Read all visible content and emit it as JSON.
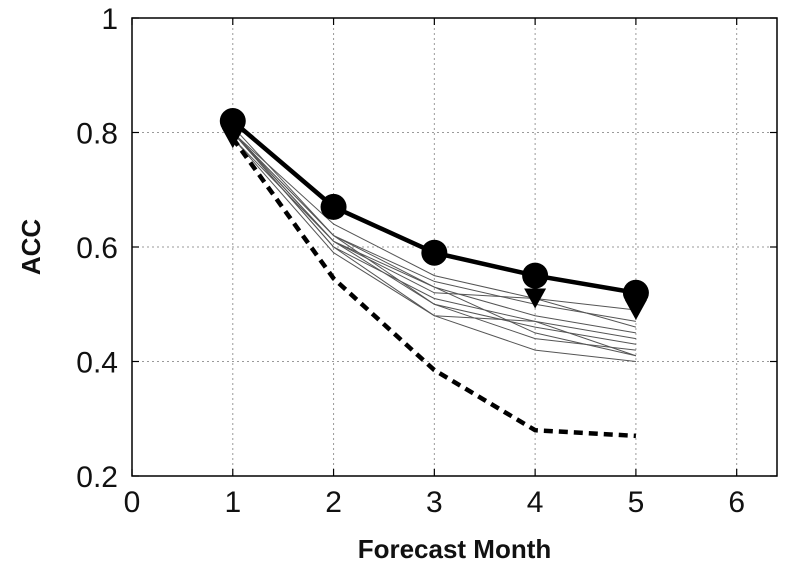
{
  "chart_data": {
    "type": "line",
    "xlabel": "Forecast Month",
    "ylabel": "ACC",
    "xlim": [
      0,
      6.4
    ],
    "ylim": [
      0.2,
      1.0
    ],
    "x_ticks": [
      0,
      1,
      2,
      3,
      4,
      5,
      6
    ],
    "y_ticks": [
      0.2,
      0.4,
      0.6,
      0.8,
      1.0
    ],
    "x_tick_labels": [
      "0",
      "1",
      "2",
      "3",
      "4",
      "5",
      "6"
    ],
    "y_tick_labels": [
      "0.2",
      "0.4",
      "0.6",
      "0.8",
      "1"
    ],
    "grid": true,
    "x": [
      1,
      2,
      3,
      4,
      5
    ],
    "series": [
      {
        "style": "thick-solid-circle",
        "color": "#000000",
        "values": [
          0.82,
          0.67,
          0.59,
          0.55,
          0.52
        ]
      },
      {
        "style": "triangle-markers",
        "color": "#000000",
        "values": [
          0.79,
          null,
          null,
          0.51,
          0.49
        ]
      },
      {
        "style": "dashed",
        "color": "#000000",
        "values": [
          0.79,
          0.545,
          0.385,
          0.28,
          0.27
        ]
      },
      {
        "style": "thin",
        "color": "#555555",
        "values": [
          0.8,
          0.64,
          0.55,
          0.51,
          0.49
        ]
      },
      {
        "style": "thin",
        "color": "#555555",
        "values": [
          0.81,
          0.62,
          0.54,
          0.5,
          0.47
        ]
      },
      {
        "style": "thin",
        "color": "#555555",
        "values": [
          0.8,
          0.61,
          0.52,
          0.51,
          0.46
        ]
      },
      {
        "style": "thin",
        "color": "#555555",
        "values": [
          0.8,
          0.61,
          0.53,
          0.48,
          0.45
        ]
      },
      {
        "style": "thin",
        "color": "#555555",
        "values": [
          0.8,
          0.6,
          0.51,
          0.47,
          0.44
        ]
      },
      {
        "style": "thin",
        "color": "#555555",
        "values": [
          0.8,
          0.62,
          0.5,
          0.46,
          0.43
        ]
      },
      {
        "style": "thin",
        "color": "#555555",
        "values": [
          0.79,
          0.59,
          0.48,
          0.47,
          0.41
        ]
      },
      {
        "style": "thin",
        "color": "#555555",
        "values": [
          0.8,
          0.6,
          0.48,
          0.42,
          0.4
        ]
      },
      {
        "style": "thin",
        "color": "#555555",
        "values": [
          0.79,
          0.61,
          0.5,
          0.44,
          0.42
        ]
      },
      {
        "style": "thin",
        "color": "#555555",
        "values": [
          0.8,
          0.62,
          0.53,
          0.45,
          0.41
        ]
      }
    ]
  }
}
